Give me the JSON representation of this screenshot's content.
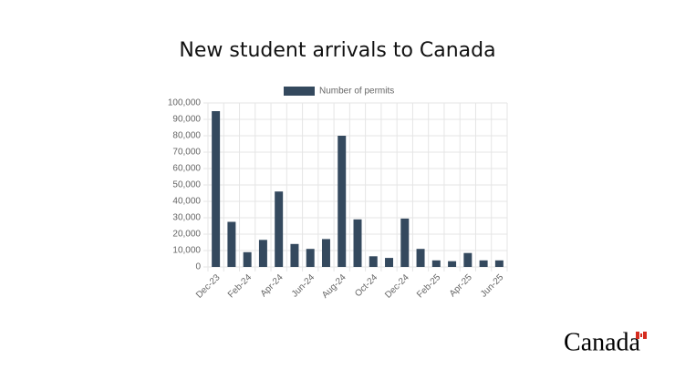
{
  "chart_data": {
    "type": "bar",
    "title": "New student arrivals to Canada",
    "categories": [
      "Dec-23",
      null,
      "Feb-24",
      null,
      "Apr-24",
      null,
      "Jun-24",
      null,
      "Aug-24",
      null,
      "Oct-24",
      null,
      "Dec-24",
      null,
      "Feb-25",
      null,
      "Apr-25",
      null,
      "Jun-25"
    ],
    "series": [
      {
        "name": "Number of permits",
        "color": "#34495e",
        "values": [
          95000,
          27500,
          9000,
          16500,
          46000,
          14000,
          11000,
          17000,
          80000,
          29000,
          6500,
          5500,
          29500,
          11000,
          4000,
          3500,
          8500,
          4000,
          4000
        ]
      }
    ],
    "ylim": [
      0,
      100000
    ],
    "yticks": [
      0,
      {
        "value": 10000,
        "label": "10,000"
      },
      {
        "value": 20000,
        "label": "20,000"
      },
      {
        "value": 30000,
        "label": "30,000"
      },
      {
        "value": 40000,
        "label": "40,000"
      },
      {
        "value": 50000,
        "label": "50,000"
      },
      {
        "value": 60000,
        "label": "60,000"
      },
      {
        "value": 70000,
        "label": "70,000"
      },
      {
        "value": 80000,
        "label": "80,000"
      },
      {
        "value": 90000,
        "label": "90,000"
      },
      {
        "value": 100000,
        "label": "100,000"
      }
    ],
    "grid": true,
    "legend": "top"
  },
  "logo_text": "Canada"
}
